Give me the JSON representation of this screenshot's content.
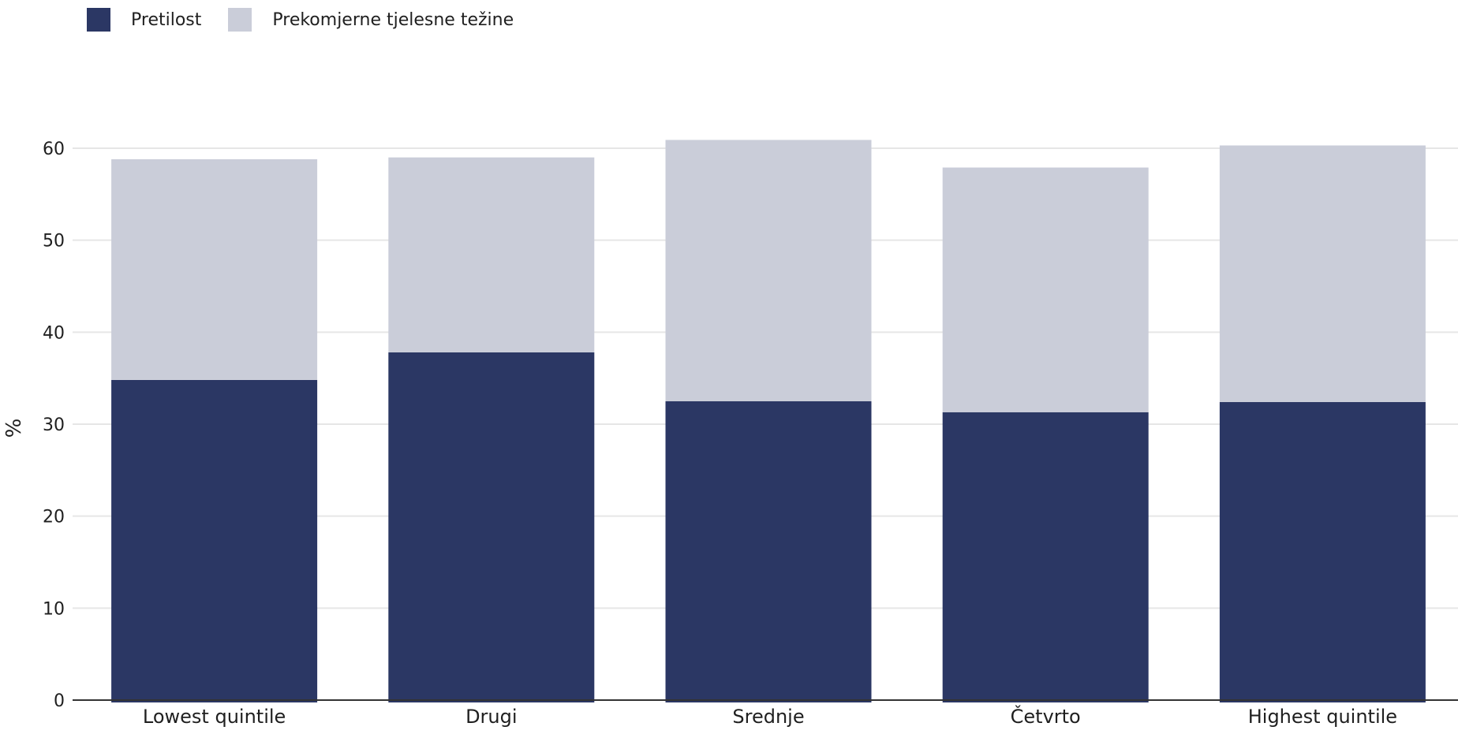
{
  "legend": {
    "items": [
      {
        "label": "Pretilost",
        "color": "#2b3764"
      },
      {
        "label": "Prekomjerne tjelesne težine",
        "color": "#cacdd9"
      }
    ]
  },
  "chart_data": {
    "type": "bar",
    "stacked": true,
    "categories": [
      "Lowest quintile",
      "Drugi",
      "Srednje",
      "Četvrto",
      "Highest quintile"
    ],
    "series": [
      {
        "name": "Pretilost",
        "color": "#2b3764",
        "values": [
          34.8,
          37.8,
          32.5,
          31.3,
          32.4
        ]
      },
      {
        "name": "Prekomjerne tjelesne težine",
        "color": "#cacdd9",
        "values": [
          24.0,
          21.2,
          28.4,
          26.6,
          27.9
        ]
      }
    ],
    "ylabel": "%",
    "ylim": [
      0,
      60
    ],
    "yticks": [
      0,
      10,
      20,
      30,
      40,
      50,
      60
    ],
    "grid": true,
    "legend_position": "top-left"
  }
}
